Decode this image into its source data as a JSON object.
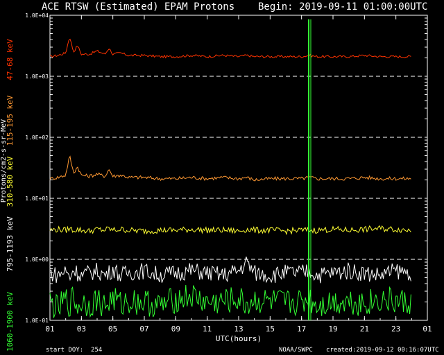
{
  "header": {
    "title": "ACE RTSW (Estimated) EPAM Protons",
    "begin": "Begin: 2019-09-11 01:00:00UTC"
  },
  "footer": {
    "start_doy": "start DOY:  254",
    "credit": "NOAA/SWPC",
    "created": "created:2019-09-12 00:16:07UTC"
  },
  "colors": {
    "background": "#000000",
    "axes": "#ffffff",
    "grid": "#ffffff",
    "ch_47_68": "#ff3300",
    "ch_115_195": "#ff9933",
    "ch_310_580": "#ffff33",
    "ch_795_1193": "#ffffff",
    "ch_1060_1900": "#33ff33",
    "spike": "#33ff33"
  },
  "chart_data": {
    "type": "line",
    "title": "ACE RTSW (Estimated) EPAM Protons",
    "xlabel": "UTC(hours)",
    "ylabel": "Protons/cm2-s-sr-MeV",
    "yscale": "log",
    "ylim": [
      0.1,
      10000
    ],
    "xlim": [
      1,
      25
    ],
    "x_ticks": [
      "01",
      "03",
      "05",
      "07",
      "09",
      "11",
      "13",
      "15",
      "17",
      "19",
      "21",
      "23",
      "01"
    ],
    "y_ticks": [
      "1.0E-01",
      "1.0E+00",
      "1.0E+01",
      "1.0E+02",
      "1.0E+03",
      "1.0E+04"
    ],
    "grid": "dashed horizontal at each decade",
    "x": [
      1.0,
      1.5,
      2.0,
      2.25,
      2.5,
      2.75,
      3.0,
      3.5,
      4.0,
      4.5,
      4.75,
      5.0,
      5.5,
      6.0,
      7.0,
      8.0,
      9.0,
      10.0,
      11.0,
      12.0,
      13.0,
      13.5,
      14.0,
      15.0,
      16.0,
      17.0,
      17.5,
      18.0,
      19.0,
      20.0,
      21.0,
      22.0,
      23.0,
      24.0
    ],
    "series": [
      {
        "name": "47-68 keV",
        "values": [
          2100,
          2200,
          2400,
          4500,
          2500,
          3200,
          2300,
          2300,
          2600,
          2300,
          2900,
          2300,
          2400,
          2200,
          2200,
          2100,
          2100,
          2200,
          2100,
          2200,
          2100,
          2200,
          2100,
          2100,
          2100,
          2100,
          2200,
          2100,
          2100,
          2100,
          2200,
          2100,
          2100,
          2100
        ]
      },
      {
        "name": "115-195 keV",
        "values": [
          21,
          22,
          24,
          50,
          26,
          33,
          24,
          23,
          25,
          23,
          30,
          23,
          24,
          22,
          22,
          21,
          21,
          22,
          21,
          22,
          21,
          22,
          20,
          21,
          21,
          21,
          22,
          21,
          21,
          21,
          22,
          21,
          21,
          21
        ]
      },
      {
        "name": "310-580 keV",
        "values": [
          3.0,
          3.1,
          3.0,
          3.2,
          3.0,
          3.1,
          3.0,
          2.9,
          3.1,
          3.0,
          3.2,
          3.0,
          3.1,
          3.0,
          2.9,
          3.0,
          3.0,
          3.1,
          3.0,
          3.0,
          2.9,
          3.1,
          3.0,
          3.0,
          2.9,
          3.0,
          3.0,
          3.0,
          3.1,
          3.0,
          3.1,
          3.2,
          3.1,
          3.0
        ]
      },
      {
        "name": "795-1193 keV",
        "values": [
          0.6,
          0.55,
          0.65,
          0.5,
          0.7,
          0.6,
          0.55,
          0.6,
          0.65,
          0.55,
          0.6,
          0.7,
          0.55,
          0.6,
          0.65,
          0.55,
          0.6,
          0.65,
          0.6,
          0.55,
          0.65,
          0.9,
          0.6,
          0.55,
          0.6,
          0.6,
          0.65,
          0.55,
          0.6,
          0.65,
          0.6,
          0.55,
          0.65,
          0.6
        ]
      },
      {
        "name": "1060-1900 keV",
        "values": [
          0.2,
          0.15,
          0.22,
          0.18,
          0.25,
          0.16,
          0.2,
          0.18,
          0.22,
          0.17,
          0.2,
          0.23,
          0.18,
          0.21,
          0.2,
          0.17,
          0.22,
          0.25,
          0.19,
          0.2,
          0.22,
          0.18,
          0.21,
          0.2,
          0.19,
          0.2,
          0.22,
          0.18,
          0.2,
          0.21,
          0.19,
          0.22,
          0.2,
          0.19
        ]
      }
    ],
    "data_gap_spike_x": 17.5
  }
}
